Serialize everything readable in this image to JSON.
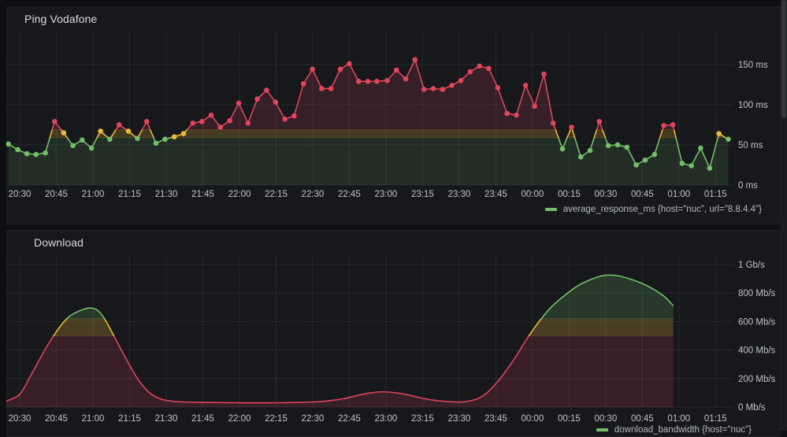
{
  "chart_data": [
    {
      "type": "line",
      "title": "Ping Vodafone",
      "legend": "average_response_ms {host=\"nuc\", url=\"8.8.4.4\"}",
      "legend_color": "#73bf69",
      "grid": true,
      "legend_position": "bottom-right",
      "y_axis_side": "right",
      "x_ticks": [
        "20:30",
        "20:45",
        "21:00",
        "21:15",
        "21:30",
        "21:45",
        "22:00",
        "22:15",
        "22:30",
        "22:45",
        "23:00",
        "23:15",
        "23:30",
        "23:45",
        "00:00",
        "00:15",
        "00:30",
        "00:45",
        "01:00",
        "01:15"
      ],
      "x_tick_step_minutes": 15,
      "xlim_minutes": [
        -5.5,
        292
      ],
      "ylim": [
        0,
        191
      ],
      "y_ticks": [
        {
          "v": 0,
          "label": "0 ms"
        },
        {
          "v": 50,
          "label": "50 ms"
        },
        {
          "v": 100,
          "label": "100 ms"
        },
        {
          "v": 150,
          "label": "150 ms"
        }
      ],
      "thresholds": {
        "bounds": [
          59,
          69
        ],
        "colors": [
          "#73bf69",
          "#eab839",
          "#e0455c"
        ],
        "fill_alphas": [
          0.13,
          0.22,
          0.16
        ]
      },
      "show_points": true,
      "smooth": false,
      "points": [
        [
          -4.6,
          51
        ],
        [
          -0.8,
          44
        ],
        [
          2.9,
          39
        ],
        [
          6.7,
          38
        ],
        [
          10.5,
          40
        ],
        [
          14.3,
          79
        ],
        [
          18,
          65
        ],
        [
          21.8,
          49
        ],
        [
          25.6,
          56
        ],
        [
          29.4,
          46
        ],
        [
          33.1,
          67
        ],
        [
          36.9,
          57
        ],
        [
          40.7,
          75
        ],
        [
          44.5,
          67
        ],
        [
          48.2,
          58
        ],
        [
          52,
          79
        ],
        [
          55.8,
          52
        ],
        [
          59.5,
          57
        ],
        [
          63.3,
          60
        ],
        [
          67.1,
          64
        ],
        [
          70.9,
          77
        ],
        [
          74.6,
          79
        ],
        [
          78.4,
          87
        ],
        [
          82.2,
          72
        ],
        [
          86,
          80
        ],
        [
          89.7,
          102
        ],
        [
          93.5,
          77
        ],
        [
          97.3,
          107
        ],
        [
          101.1,
          118
        ],
        [
          104.8,
          103
        ],
        [
          108.6,
          82
        ],
        [
          112.4,
          86
        ],
        [
          116.2,
          126
        ],
        [
          119.9,
          144
        ],
        [
          123.7,
          120
        ],
        [
          127.5,
          120
        ],
        [
          131.3,
          144
        ],
        [
          135,
          151
        ],
        [
          138.8,
          129
        ],
        [
          142.6,
          129
        ],
        [
          146.3,
          129
        ],
        [
          150.5,
          130
        ],
        [
          154.3,
          143
        ],
        [
          158.1,
          132
        ],
        [
          161.9,
          156
        ],
        [
          165.6,
          119
        ],
        [
          169.4,
          120
        ],
        [
          173.2,
          119
        ],
        [
          177,
          124
        ],
        [
          180.7,
          130
        ],
        [
          184.5,
          141
        ],
        [
          188.3,
          148
        ],
        [
          192.1,
          145
        ],
        [
          195.8,
          121
        ],
        [
          199.6,
          89
        ],
        [
          203.4,
          87
        ],
        [
          207.2,
          124
        ],
        [
          210.9,
          98
        ],
        [
          214.7,
          138
        ],
        [
          218.5,
          77
        ],
        [
          222.3,
          45
        ],
        [
          226,
          72
        ],
        [
          229.8,
          35
        ],
        [
          233.6,
          43
        ],
        [
          237.4,
          79
        ],
        [
          241.1,
          49
        ],
        [
          244.9,
          50
        ],
        [
          248.7,
          47
        ],
        [
          252.5,
          25
        ],
        [
          256.2,
          31
        ],
        [
          260,
          38
        ],
        [
          263.8,
          74
        ],
        [
          267.5,
          75
        ],
        [
          271.3,
          27
        ],
        [
          275.1,
          24
        ],
        [
          278.9,
          46
        ],
        [
          282.6,
          21
        ],
        [
          286.4,
          64
        ],
        [
          290.2,
          57
        ]
      ]
    },
    {
      "type": "area",
      "title": "Download",
      "legend": "download_bandwidth {host=\"nuc\"}",
      "legend_color": "#73bf69",
      "grid": true,
      "legend_position": "bottom-right",
      "y_axis_side": "right",
      "x_ticks": [
        "20:30",
        "20:45",
        "21:00",
        "21:15",
        "21:30",
        "21:45",
        "22:00",
        "22:15",
        "22:30",
        "22:45",
        "23:00",
        "23:15",
        "23:30",
        "23:45",
        "00:00",
        "00:15",
        "00:30",
        "00:45",
        "01:00",
        "01:15"
      ],
      "x_tick_step_minutes": 15,
      "xlim_minutes": [
        -5.5,
        292
      ],
      "ylim": [
        0,
        1060
      ],
      "y_ticks": [
        {
          "v": 0,
          "label": "0 Mb/s"
        },
        {
          "v": 200,
          "label": "200 Mb/s"
        },
        {
          "v": 400,
          "label": "400 Mb/s"
        },
        {
          "v": 600,
          "label": "600 Mb/s"
        },
        {
          "v": 800,
          "label": "800 Mb/s"
        },
        {
          "v": 1000,
          "label": "1 Gb/s"
        }
      ],
      "thresholds": {
        "bounds": [
          500,
          620
        ],
        "colors": [
          "#e0455c",
          "#eab839",
          "#73bf69"
        ],
        "fill_alphas": [
          0.17,
          0.24,
          0.2
        ]
      },
      "show_points": false,
      "smooth": true,
      "points": [
        [
          -5.5,
          42
        ],
        [
          0,
          90
        ],
        [
          4.8,
          230
        ],
        [
          11.3,
          430
        ],
        [
          17.7,
          590
        ],
        [
          22.6,
          660
        ],
        [
          29.5,
          695
        ],
        [
          33.9,
          640
        ],
        [
          38.7,
          495
        ],
        [
          43.5,
          340
        ],
        [
          48.4,
          195
        ],
        [
          53.2,
          100
        ],
        [
          58.1,
          55
        ],
        [
          64.5,
          38
        ],
        [
          75.8,
          33
        ],
        [
          91.9,
          30
        ],
        [
          108.1,
          31
        ],
        [
          122.6,
          38
        ],
        [
          132.3,
          58
        ],
        [
          141.9,
          95
        ],
        [
          149,
          107
        ],
        [
          157.1,
          92
        ],
        [
          166.1,
          58
        ],
        [
          174.2,
          40
        ],
        [
          182.3,
          38
        ],
        [
          189.4,
          75
        ],
        [
          195.8,
          180
        ],
        [
          202.3,
          330
        ],
        [
          207.4,
          470
        ],
        [
          212.3,
          590
        ],
        [
          217.1,
          690
        ],
        [
          222.6,
          775
        ],
        [
          229,
          855
        ],
        [
          235.5,
          905
        ],
        [
          240.3,
          925
        ],
        [
          245.2,
          920
        ],
        [
          250,
          898
        ],
        [
          254.8,
          868
        ],
        [
          259.7,
          825
        ],
        [
          264.5,
          768
        ],
        [
          267.7,
          710
        ]
      ]
    }
  ],
  "ui_colors": {
    "page_background": "#0e0f12",
    "panel_background": "#16181c",
    "axis_text": "#bfc3c8",
    "title_text": "#d8d9da",
    "legend_text": "#b4b9bf",
    "grid_line": "rgba(255,255,255,0.07)"
  }
}
